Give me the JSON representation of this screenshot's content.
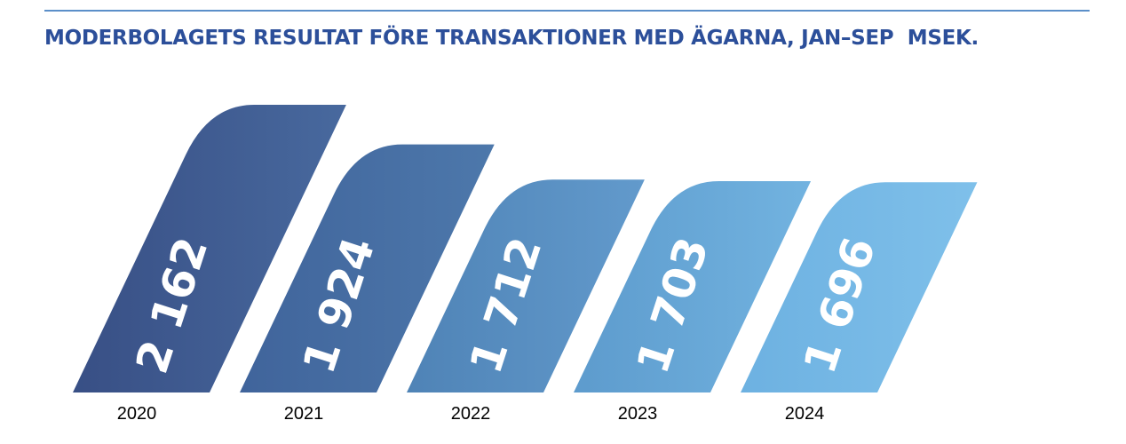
{
  "chart_data": {
    "type": "bar",
    "title": "MODERBOLAGETS RESULTAT FÖRE TRANSAKTIONER MED ÄGARNA, JAN–SEP  MSEK.",
    "categories": [
      "2020",
      "2021",
      "2022",
      "2023",
      "2024"
    ],
    "values": [
      2162,
      1924,
      1712,
      1703,
      1696
    ],
    "value_labels": [
      "2 162",
      "1 924",
      "1 712",
      "1 703",
      "1 696"
    ],
    "xlabel": "",
    "ylabel": "",
    "grid": false,
    "legend": "none",
    "colors": [
      "#384f85",
      "#40649b",
      "#4f83b6",
      "#5d9bcd",
      "#6db1e1"
    ],
    "colors_light": [
      "#48699e",
      "#4d78ab",
      "#629acc",
      "#72b3e0",
      "#7fc0ea"
    ]
  }
}
